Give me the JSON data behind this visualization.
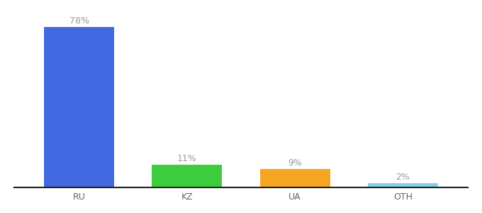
{
  "categories": [
    "RU",
    "KZ",
    "UA",
    "OTH"
  ],
  "values": [
    78,
    11,
    9,
    2
  ],
  "labels": [
    "78%",
    "11%",
    "9%",
    "2%"
  ],
  "bar_colors": [
    "#4169e1",
    "#3dcc3d",
    "#f5a623",
    "#87ceeb"
  ],
  "background_color": "#ffffff",
  "ylim": [
    0,
    88
  ],
  "xlim": [
    -0.6,
    3.6
  ],
  "bar_width": 0.65,
  "label_color": "#999999",
  "label_fontsize": 9,
  "tick_fontsize": 9,
  "tick_color": "#666666",
  "spine_color": "#222222",
  "spine_linewidth": 1.5
}
